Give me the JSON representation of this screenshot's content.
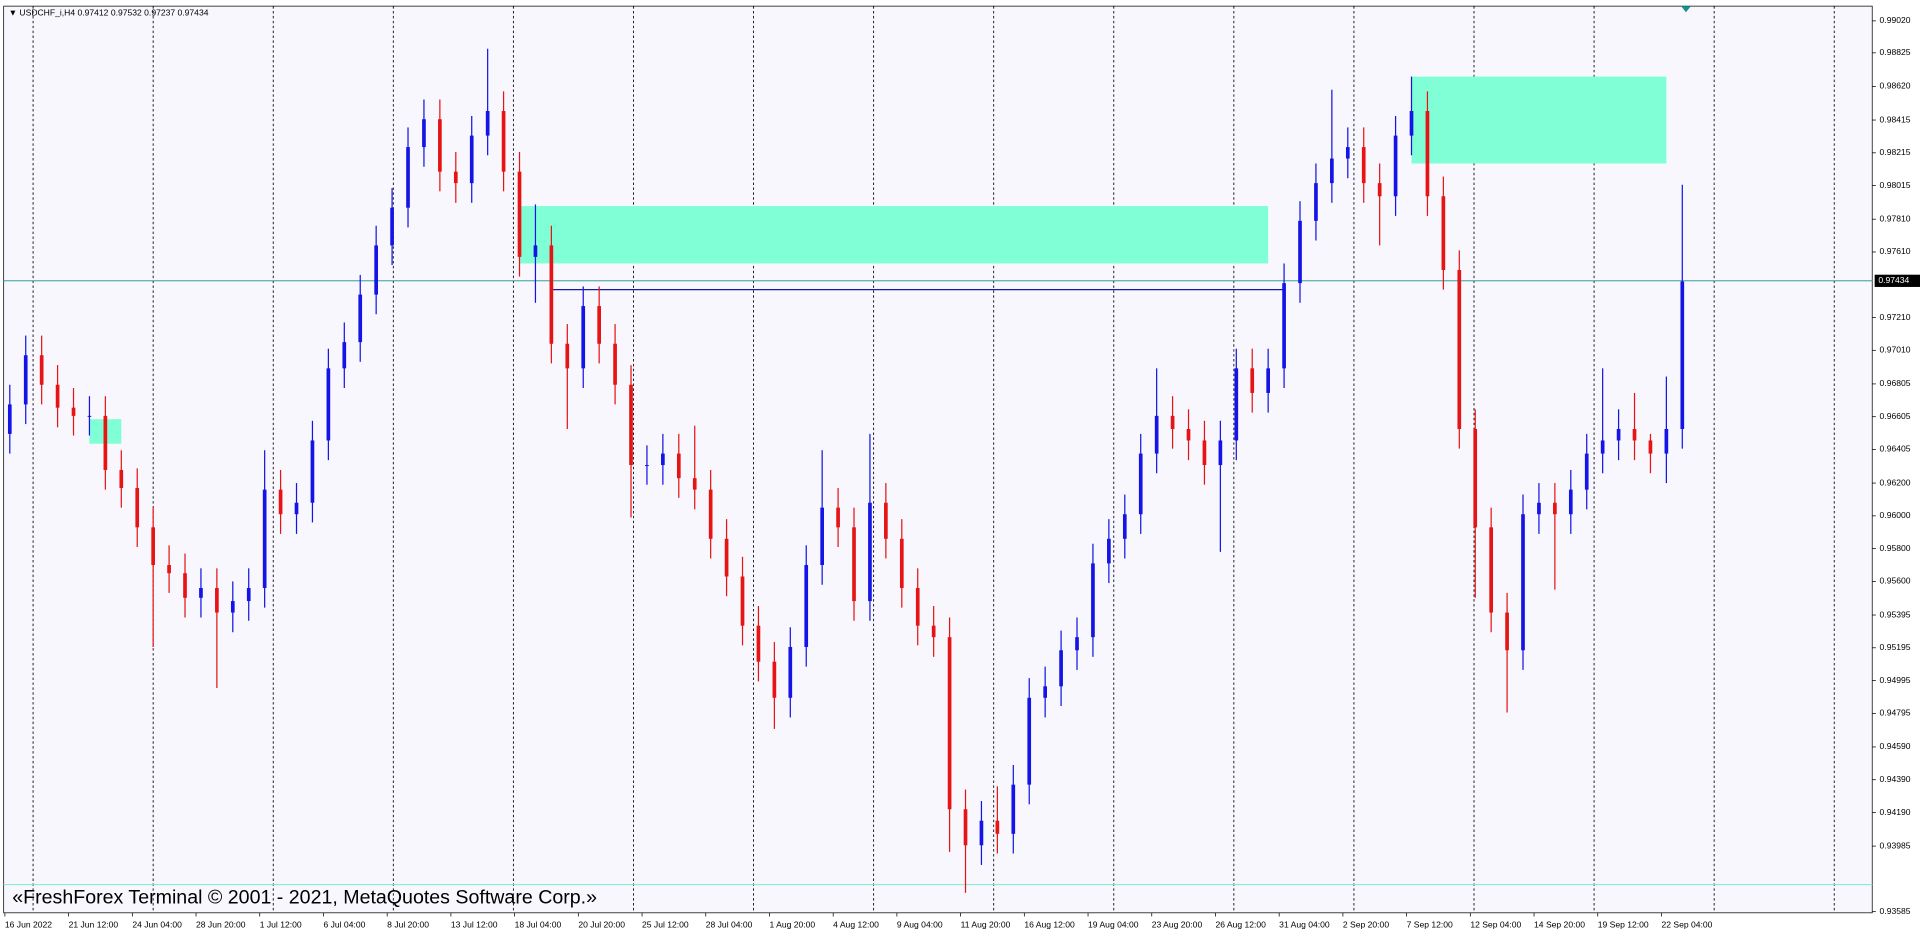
{
  "chart_data": {
    "type": "candlestick",
    "symbol": "USDCHF_i,H4",
    "header_prices": [
      0.97412,
      0.97532,
      0.97237,
      0.97434
    ],
    "watermark": "«FreshForex Terminal © 2001 - 2021, MetaQuotes Software Corp.»",
    "up_color": "#1414e6",
    "down_color": "#e61414",
    "zone_color": "#80ffd6",
    "categories": [
      "16 Jun 2022",
      null,
      null,
      null,
      "21 Jun 12:00",
      null,
      null,
      null,
      "24 Jun 04:00",
      null,
      null,
      null,
      "28 Jun 20:00",
      null,
      null,
      null,
      "1 Jul 12:00",
      null,
      null,
      null,
      "6 Jul 04:00",
      null,
      null,
      null,
      "8 Jul 20:00",
      null,
      null,
      null,
      "13 Jul 12:00",
      null,
      null,
      null,
      "18 Jul 04:00",
      null,
      null,
      null,
      "20 Jul 20:00",
      null,
      null,
      null,
      "25 Jul 12:00",
      null,
      null,
      null,
      "28 Jul 04:00",
      null,
      null,
      null,
      "1 Aug 20:00",
      null,
      null,
      null,
      "4 Aug 12:00",
      null,
      null,
      null,
      "9 Aug 04:00",
      null,
      null,
      null,
      "11 Aug 20:00",
      null,
      null,
      null,
      "16 Aug 12:00",
      null,
      null,
      null,
      "19 Aug 04:00",
      null,
      null,
      null,
      "23 Aug 20:00",
      null,
      null,
      null,
      "26 Aug 12:00",
      null,
      null,
      null,
      "31 Aug 04:00",
      null,
      null,
      null,
      "2 Sep 20:00",
      null,
      null,
      null,
      "7 Sep 12:00",
      null,
      null,
      null,
      "12 Sep 04:00",
      null,
      null,
      null,
      "14 Sep 20:00",
      null,
      null,
      null,
      "19 Sep 12:00",
      null,
      null,
      null,
      "22 Sep 04:00",
      null
    ],
    "open": [
      0.965,
      0.9668,
      0.9698,
      0.968,
      0.9666,
      0.9661,
      0.9661,
      0.9628,
      0.9617,
      0.9593,
      0.957,
      0.9565,
      0.955,
      0.9556,
      0.9541,
      0.9548,
      0.9556,
      0.9616,
      0.9601,
      0.9608,
      0.9646,
      0.969,
      0.9706,
      0.9735,
      0.9765,
      0.9788,
      0.9825,
      0.9842,
      0.981,
      0.9803,
      0.9832,
      0.9847,
      0.981,
      0.9758,
      0.9765,
      0.9705,
      0.969,
      0.9728,
      0.9705,
      0.968,
      0.9631,
      0.9631,
      0.9638,
      0.9623,
      0.9616,
      0.9586,
      0.9563,
      0.9533,
      0.9511,
      0.9489,
      0.952,
      0.957,
      0.9605,
      0.9593,
      0.9548,
      0.9608,
      0.9586,
      0.9556,
      0.9533,
      0.9526,
      0.9421,
      0.9399,
      0.9414,
      0.9406,
      0.9436,
      0.9489,
      0.9496,
      0.9518,
      0.9526,
      0.9571,
      0.9586,
      0.9601,
      0.9638,
      0.9661,
      0.9653,
      0.9646,
      0.9631,
      0.9646,
      0.969,
      0.9675,
      0.969,
      0.9742,
      0.978,
      0.9803,
      0.9818,
      0.9825,
      0.9803,
      0.9795,
      0.9832,
      0.9847,
      0.9795,
      0.975,
      0.9653,
      0.9593,
      0.9541,
      0.9518,
      0.9601,
      0.9608,
      0.9601,
      0.9616,
      0.9638,
      0.9646,
      0.9653,
      0.9646,
      0.9638,
      0.9653
    ],
    "high": [
      0.968,
      0.971,
      0.971,
      0.9692,
      0.9678,
      0.9673,
      0.9673,
      0.964,
      0.9629,
      0.9605,
      0.9582,
      0.9577,
      0.9568,
      0.9568,
      0.956,
      0.9568,
      0.964,
      0.9628,
      0.962,
      0.9658,
      0.9702,
      0.9718,
      0.9747,
      0.9777,
      0.98,
      0.9837,
      0.9854,
      0.9854,
      0.9822,
      0.9844,
      0.9885,
      0.9859,
      0.9822,
      0.979,
      0.9777,
      0.9717,
      0.974,
      0.974,
      0.9717,
      0.9692,
      0.9643,
      0.965,
      0.965,
      0.9655,
      0.9628,
      0.9598,
      0.9575,
      0.9545,
      0.9523,
      0.9532,
      0.9582,
      0.964,
      0.9617,
      0.9605,
      0.965,
      0.962,
      0.9598,
      0.9568,
      0.9545,
      0.9538,
      0.9433,
      0.9426,
      0.9435,
      0.9448,
      0.9501,
      0.9508,
      0.953,
      0.9538,
      0.9583,
      0.9598,
      0.9613,
      0.965,
      0.969,
      0.9673,
      0.9665,
      0.9658,
      0.9658,
      0.9702,
      0.9702,
      0.9702,
      0.9754,
      0.9792,
      0.9815,
      0.986,
      0.9837,
      0.9837,
      0.9815,
      0.9844,
      0.9868,
      0.9859,
      0.9807,
      0.9762,
      0.9665,
      0.9605,
      0.9553,
      0.9613,
      0.962,
      0.962,
      0.9628,
      0.965,
      0.969,
      0.9665,
      0.9675,
      0.965,
      0.9685,
      0.9802
    ],
    "low": [
      0.9638,
      0.9656,
      0.9668,
      0.9654,
      0.9649,
      0.9649,
      0.9616,
      0.9605,
      0.9581,
      0.952,
      0.9553,
      0.9538,
      0.9538,
      0.9495,
      0.9529,
      0.9536,
      0.9544,
      0.9589,
      0.9589,
      0.9596,
      0.9634,
      0.9678,
      0.9694,
      0.9723,
      0.9753,
      0.9776,
      0.9813,
      0.9798,
      0.9791,
      0.9791,
      0.982,
      0.9798,
      0.9746,
      0.973,
      0.9693,
      0.9653,
      0.9678,
      0.9693,
      0.9668,
      0.9599,
      0.9619,
      0.9619,
      0.9611,
      0.9604,
      0.9574,
      0.9551,
      0.9521,
      0.9499,
      0.947,
      0.9477,
      0.9508,
      0.9558,
      0.9581,
      0.9536,
      0.9536,
      0.9574,
      0.9544,
      0.9521,
      0.9514,
      0.9395,
      0.937,
      0.9387,
      0.9394,
      0.9394,
      0.9424,
      0.9477,
      0.9484,
      0.9506,
      0.9514,
      0.9559,
      0.9574,
      0.9589,
      0.9626,
      0.9641,
      0.9634,
      0.9619,
      0.9578,
      0.9634,
      0.9663,
      0.9663,
      0.9678,
      0.973,
      0.9768,
      0.9791,
      0.9806,
      0.9791,
      0.9765,
      0.9783,
      0.982,
      0.9783,
      0.9738,
      0.9641,
      0.955,
      0.9529,
      0.948,
      0.9506,
      0.9589,
      0.9555,
      0.9589,
      0.9604,
      0.9626,
      0.9634,
      0.9634,
      0.9626,
      0.962,
      0.9641
    ],
    "close": [
      0.9668,
      0.9698,
      0.968,
      0.9666,
      0.9661,
      0.9661,
      0.9628,
      0.9617,
      0.9593,
      0.957,
      0.9565,
      0.955,
      0.9556,
      0.9541,
      0.9548,
      0.9556,
      0.9616,
      0.9601,
      0.9608,
      0.9646,
      0.969,
      0.9706,
      0.9735,
      0.9765,
      0.9788,
      0.9825,
      0.9842,
      0.981,
      0.9803,
      0.9832,
      0.9847,
      0.981,
      0.9758,
      0.9765,
      0.9705,
      0.969,
      0.9728,
      0.9705,
      0.968,
      0.9631,
      0.9631,
      0.9638,
      0.9623,
      0.9616,
      0.9586,
      0.9563,
      0.9533,
      0.9511,
      0.9489,
      0.952,
      0.957,
      0.9605,
      0.9593,
      0.9548,
      0.9608,
      0.9586,
      0.9556,
      0.9533,
      0.9526,
      0.9421,
      0.9399,
      0.9414,
      0.9406,
      0.9436,
      0.9489,
      0.9496,
      0.9518,
      0.9526,
      0.9571,
      0.9586,
      0.9601,
      0.9638,
      0.9661,
      0.9653,
      0.9646,
      0.9631,
      0.9646,
      0.969,
      0.9675,
      0.969,
      0.9742,
      0.978,
      0.9803,
      0.9818,
      0.9825,
      0.9803,
      0.9795,
      0.9832,
      0.9847,
      0.9795,
      0.975,
      0.9653,
      0.9593,
      0.9541,
      0.9518,
      0.9601,
      0.9608,
      0.9601,
      0.9616,
      0.9638,
      0.9646,
      0.9653,
      0.9646,
      0.9638,
      0.9653,
      0.9743
    ],
    "ylim": [
      0.93578,
      0.9911
    ],
    "yticks": [
      {
        "value": 0.9902,
        "label": "0.99020"
      },
      0.98825,
      {
        "value": 0.9862,
        "label": "0.98620"
      },
      0.98415,
      0.98215,
      0.98015,
      {
        "value": 0.9781,
        "label": "0.97810"
      },
      {
        "value": 0.9761,
        "label": "0.97610"
      },
      {
        "value": 0.9721,
        "label": "0.97210"
      },
      {
        "value": 0.9701,
        "label": "0.97010"
      },
      0.96805,
      0.96605,
      0.96405,
      {
        "value": 0.962,
        "label": "0.96200"
      },
      {
        "value": 0.96,
        "label": "0.96000"
      },
      {
        "value": 0.958,
        "label": "0.95800"
      },
      {
        "value": 0.956,
        "label": "0.95600"
      },
      0.95395,
      0.95195,
      0.94995,
      0.94795,
      {
        "value": 0.9459,
        "label": "0.94590"
      },
      {
        "value": 0.9439,
        "label": "0.94390"
      },
      {
        "value": 0.9419,
        "label": "0.94190"
      },
      0.93985,
      0.93585
    ],
    "last_price": 0.97434,
    "low_level": 0.9375,
    "trendline": {
      "from": 34,
      "to": 80,
      "value": 0.9738
    },
    "zones": [
      {
        "from": 32,
        "to": 79,
        "top": 0.9789,
        "bottom": 0.9754
      },
      {
        "from": 88,
        "to": 104,
        "top": 0.9868,
        "bottom": 0.9815
      },
      {
        "from": 5,
        "to": 7,
        "top": 0.9659,
        "bottom": 0.9644
      }
    ]
  }
}
